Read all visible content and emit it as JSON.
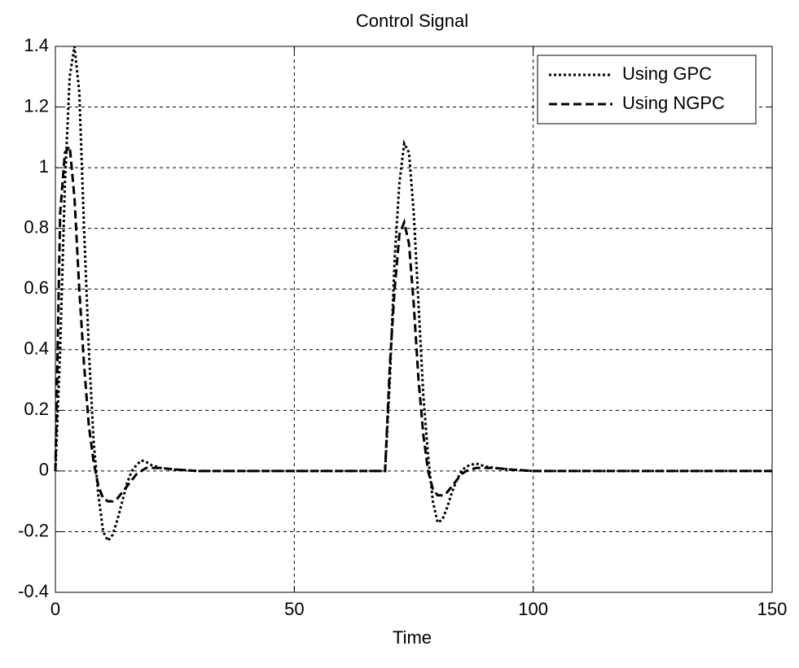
{
  "chart_data": {
    "type": "line",
    "title": "Control Signal",
    "x_label": "Time",
    "x": [
      0,
      1,
      2,
      3,
      4,
      5,
      6,
      7,
      8,
      9,
      10,
      11,
      12,
      13,
      14,
      15,
      16,
      17,
      18,
      19,
      20,
      22,
      25,
      30,
      40,
      50,
      60,
      68,
      69,
      70,
      71,
      72,
      73,
      74,
      75,
      76,
      77,
      78,
      79,
      80,
      81,
      82,
      83,
      84,
      85,
      86,
      87,
      88,
      89,
      90,
      92,
      95,
      100,
      110,
      120,
      130,
      140,
      150
    ],
    "series": [
      {
        "name": "Using GPC",
        "color": "#000000",
        "linestyle": "dotted",
        "values": [
          0,
          0.4,
          0.95,
          1.3,
          1.4,
          1.25,
          0.8,
          0.4,
          0.1,
          -0.08,
          -0.2,
          -0.23,
          -0.21,
          -0.16,
          -0.1,
          -0.04,
          0,
          0.02,
          0.035,
          0.03,
          0.02,
          0.01,
          0.005,
          0,
          0,
          0,
          0,
          0,
          0,
          0.3,
          0.7,
          0.95,
          1.08,
          1.05,
          0.85,
          0.55,
          0.25,
          0.05,
          -0.1,
          -0.17,
          -0.16,
          -0.12,
          -0.07,
          -0.03,
          0,
          0.015,
          0.02,
          0.025,
          0.02,
          0.015,
          0.01,
          0.005,
          0,
          0,
          0,
          0,
          0,
          0
        ]
      },
      {
        "name": "Using NGPC",
        "color": "#000000",
        "linestyle": "dashed",
        "values": [
          0,
          0.85,
          1.05,
          1.07,
          0.9,
          0.6,
          0.35,
          0.15,
          0.03,
          -0.05,
          -0.09,
          -0.1,
          -0.1,
          -0.09,
          -0.07,
          -0.05,
          -0.03,
          -0.01,
          0,
          0.01,
          0.01,
          0.01,
          0.005,
          0,
          0,
          0,
          0,
          0,
          0,
          0.35,
          0.6,
          0.78,
          0.82,
          0.75,
          0.55,
          0.3,
          0.12,
          0,
          -0.06,
          -0.08,
          -0.08,
          -0.07,
          -0.05,
          -0.03,
          -0.01,
          0,
          0.005,
          0.01,
          0.01,
          0.01,
          0.01,
          0.005,
          0,
          0,
          0,
          0,
          0,
          0
        ]
      }
    ],
    "xlim": [
      0,
      150
    ],
    "xticks": [
      0,
      50,
      100,
      150
    ],
    "ylim": [
      -0.4,
      1.4
    ],
    "yticks": [
      -0.4,
      -0.2,
      0,
      0.2,
      0.4,
      0.6,
      0.8,
      1,
      1.2,
      1.4
    ],
    "grid": true,
    "legend": "top-right"
  }
}
